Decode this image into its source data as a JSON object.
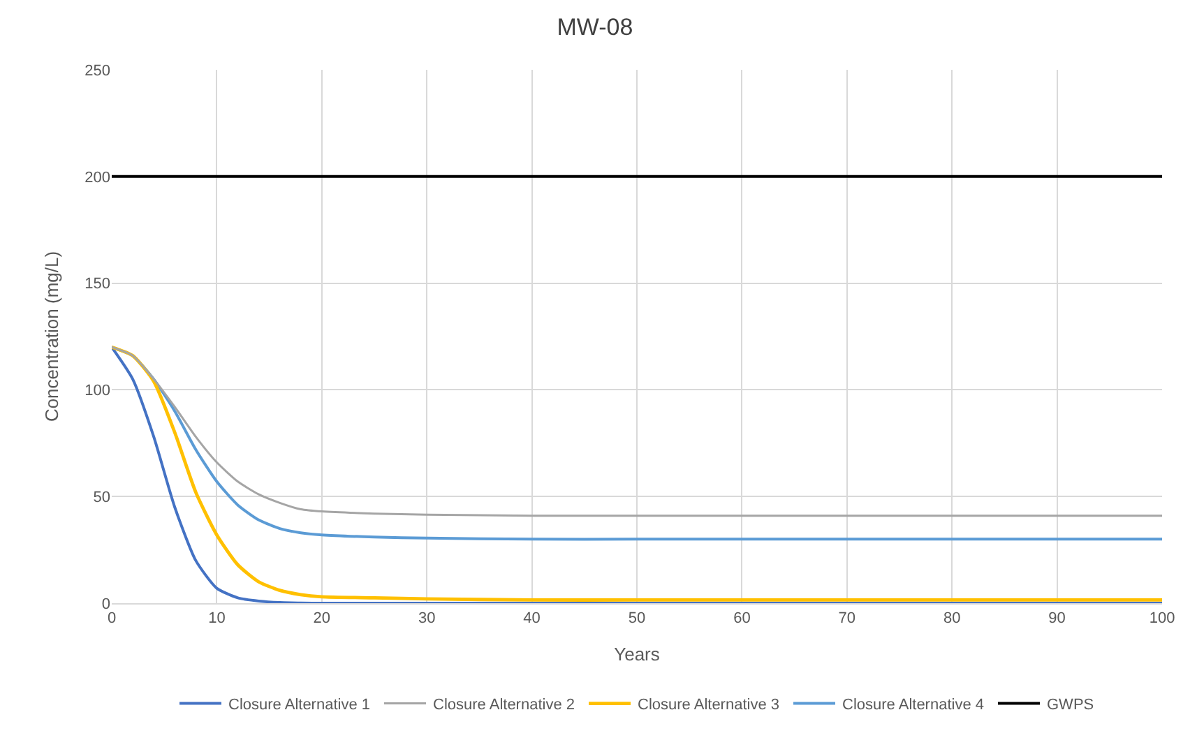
{
  "chart_data": {
    "type": "line",
    "title": "MW-08",
    "xlabel": "Years",
    "ylabel": "Concentration (mg/L)",
    "x": [
      0,
      2,
      4,
      6,
      8,
      10,
      12,
      14,
      16,
      18,
      20,
      25,
      30,
      40,
      50,
      60,
      70,
      80,
      90,
      100
    ],
    "series": [
      {
        "name": "Closure Alternative 1",
        "color": "#4472c4",
        "values": [
          120,
          105,
          78,
          45,
          20,
          7,
          2.5,
          1,
          0.3,
          0.1,
          0,
          0,
          0,
          0,
          0,
          0,
          0,
          0,
          0,
          0
        ]
      },
      {
        "name": "Closure Alternative 2",
        "color": "#a5a5a5",
        "values": [
          120,
          116,
          105,
          92,
          78,
          66,
          57,
          51,
          47,
          44,
          43,
          42,
          41.5,
          41,
          41,
          41,
          41,
          41,
          41,
          41
        ]
      },
      {
        "name": "Closure Alternative 3",
        "color": "#ffc000",
        "values": [
          120,
          116,
          104,
          80,
          52,
          32,
          18,
          10,
          6,
          4,
          3,
          2.5,
          2,
          1.5,
          1.5,
          1.5,
          1.5,
          1.5,
          1.5,
          1.5
        ]
      },
      {
        "name": "Closure Alternative 4",
        "color": "#5b9bd5",
        "values": [
          120,
          116,
          105,
          90,
          72,
          57,
          46,
          39,
          35,
          33,
          32,
          31,
          30.5,
          30,
          30,
          30,
          30,
          30,
          30,
          30
        ]
      },
      {
        "name": "GWPS",
        "color": "#000000",
        "x": [
          0,
          100
        ],
        "values": [
          200,
          200
        ]
      }
    ],
    "xlim": [
      0,
      100
    ],
    "xticks": [
      0,
      10,
      20,
      30,
      40,
      50,
      60,
      70,
      80,
      90,
      100
    ],
    "ylim": [
      0,
      250
    ],
    "yticks": [
      0,
      50,
      100,
      150,
      200,
      250
    ],
    "grid": true,
    "legend": "bottom",
    "marker": "none",
    "line_style": "solid"
  }
}
